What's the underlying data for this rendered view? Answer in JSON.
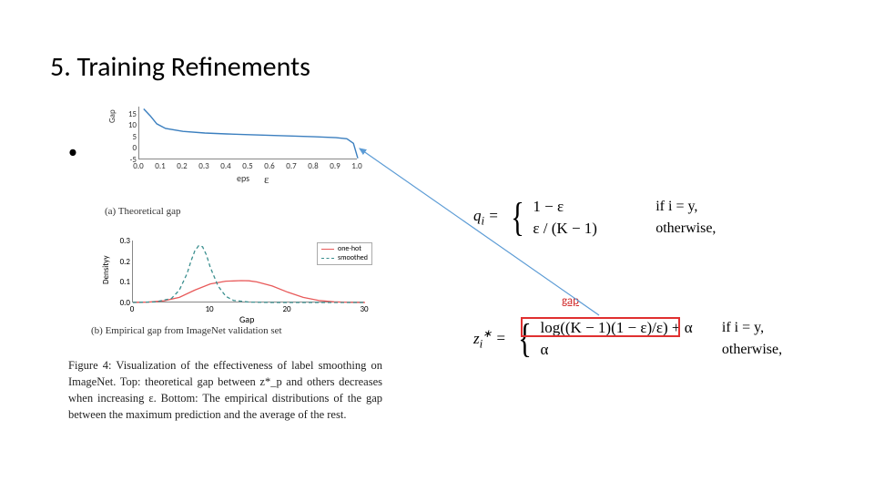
{
  "title": "5. Training Refinements",
  "chartA": {
    "type": "line",
    "ylabel": "Gap",
    "xlabel": "eps",
    "eps_annotation": "ε",
    "yticks": [
      -5,
      0,
      5,
      10,
      15
    ],
    "ylim": [
      -5,
      18
    ],
    "xticks": [
      "0.0",
      "0.1",
      "0.2",
      "0.3",
      "0.4",
      "0.5",
      "0.6",
      "0.7",
      "0.8",
      "0.9",
      "1.0"
    ],
    "xlim": [
      0,
      1
    ],
    "line_color": "#3b7fbf",
    "line_width": 1.4,
    "points": [
      [
        0.02,
        17
      ],
      [
        0.05,
        14
      ],
      [
        0.08,
        10.5
      ],
      [
        0.12,
        8.5
      ],
      [
        0.2,
        7.2
      ],
      [
        0.3,
        6.5
      ],
      [
        0.4,
        6.1
      ],
      [
        0.5,
        5.8
      ],
      [
        0.6,
        5.5
      ],
      [
        0.7,
        5.2
      ],
      [
        0.8,
        4.9
      ],
      [
        0.9,
        4.5
      ],
      [
        0.95,
        4.0
      ],
      [
        0.98,
        2.0
      ],
      [
        1.0,
        -4.5
      ]
    ],
    "caption": "(a) Theoretical gap",
    "axis_color": "#888888",
    "tick_fontsize": 9
  },
  "chartB": {
    "type": "line",
    "ylabel": "Densityy",
    "xlabel": "Gap",
    "yticks": [
      "0.0",
      "0.1",
      "0.2",
      "0.3"
    ],
    "ylim": [
      0,
      0.3
    ],
    "xticks": [
      0,
      10,
      20,
      30
    ],
    "xlim": [
      0,
      30
    ],
    "series": [
      {
        "name": "one-hot",
        "color": "#e85a5a",
        "dash": "solid",
        "points": [
          [
            0,
            0
          ],
          [
            2,
            0.002
          ],
          [
            4,
            0.008
          ],
          [
            6,
            0.025
          ],
          [
            8,
            0.06
          ],
          [
            10,
            0.09
          ],
          [
            12,
            0.103
          ],
          [
            14,
            0.106
          ],
          [
            15,
            0.105
          ],
          [
            16,
            0.1
          ],
          [
            18,
            0.08
          ],
          [
            20,
            0.05
          ],
          [
            22,
            0.025
          ],
          [
            24,
            0.01
          ],
          [
            26,
            0.003
          ],
          [
            28,
            0.0007
          ],
          [
            30,
            0
          ]
        ]
      },
      {
        "name": "smoothed",
        "color": "#3b8f8f",
        "dash": "dashed",
        "points": [
          [
            0,
            0
          ],
          [
            3,
            0.003
          ],
          [
            5,
            0.02
          ],
          [
            6,
            0.06
          ],
          [
            7,
            0.14
          ],
          [
            7.5,
            0.2
          ],
          [
            8,
            0.25
          ],
          [
            8.5,
            0.275
          ],
          [
            9,
            0.27
          ],
          [
            9.5,
            0.23
          ],
          [
            10,
            0.17
          ],
          [
            11,
            0.08
          ],
          [
            12,
            0.03
          ],
          [
            13,
            0.01
          ],
          [
            15,
            0.002
          ],
          [
            18,
            0
          ],
          [
            30,
            0
          ]
        ]
      }
    ],
    "legend": {
      "items": [
        "one-hot",
        "smoothed"
      ]
    },
    "caption": "(b) Empirical gap from ImageNet validation set"
  },
  "figCaption": "Figure 4: Visualization of the effectiveness of label smoothing on ImageNet. Top: theoretical gap between z*_p and others decreases when increasing ε. Bottom: The empirical distributions of the gap between the maximum prediction and the average of the rest.",
  "eqTop": {
    "lhs": "q_i =",
    "case1": "1 − ε",
    "case2": "ε / (K − 1)",
    "cond1": "if i = y,",
    "cond2": "otherwise,"
  },
  "eqBot": {
    "lhs": "z_i* =",
    "case1": "log((K − 1)(1 − ε)/ε) + α",
    "case2": "α",
    "cond1": "if i = y,",
    "cond2": "otherwise,"
  },
  "gapLabel": "gap",
  "colors": {
    "highlight_box": "#e03030",
    "gap_text": "#d02828",
    "arrow": "#5b9bd5"
  }
}
